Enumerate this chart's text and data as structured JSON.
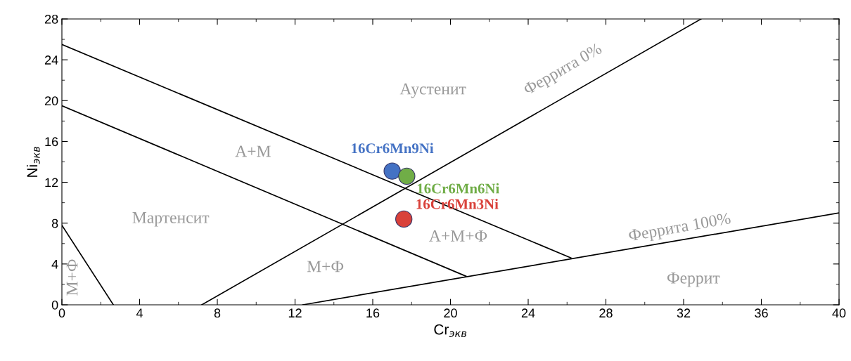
{
  "chart_data": {
    "type": "line",
    "xlabel": "Cr$_{экв}$",
    "ylabel": "Ni$_{экв}$",
    "xlim": [
      0,
      40
    ],
    "xticks": [
      0,
      4,
      8,
      12,
      16,
      20,
      24,
      28,
      32,
      36,
      40
    ],
    "ylim": [
      0,
      28
    ],
    "yticks": [
      0,
      4,
      8,
      12,
      16,
      20,
      24,
      28
    ],
    "grid": false,
    "legend": false,
    "series": [
      {
        "color": "#000000",
        "x": [
          0,
          26.2
        ],
        "values": [
          25.5,
          4.6
        ],
        "marker": "none",
        "line_style": "solid"
      },
      {
        "color": "#000000",
        "x": [
          0,
          20.8
        ],
        "values": [
          19.5,
          2.8
        ],
        "marker": "none",
        "line_style": "solid"
      },
      {
        "color": "#000000",
        "x": [
          7.2,
          32.9
        ],
        "values": [
          0,
          28
        ],
        "marker": "none",
        "line_style": "solid"
      },
      {
        "color": "#000000",
        "x": [
          12.4,
          40
        ],
        "values": [
          0,
          9.0
        ],
        "marker": "none",
        "line_style": "solid"
      },
      {
        "color": "#000000",
        "x": [
          0,
          2.65
        ],
        "values": [
          7.8,
          0
        ],
        "marker": "none",
        "line_style": "solid"
      },
      {
        "type": "scatter",
        "name": "16Cr6Mn9Ni",
        "color": "#4472c4",
        "x": [
          17.0
        ],
        "values": [
          13.1
        ],
        "marker": "circle"
      },
      {
        "type": "scatter",
        "name": "16Cr6Mn6Ni",
        "color": "#70ad47",
        "x": [
          17.75
        ],
        "values": [
          12.6
        ],
        "marker": "circle"
      },
      {
        "type": "scatter",
        "name": "16Cr6Mn3Ni",
        "color": "#d9413a",
        "x": [
          17.6
        ],
        "values": [
          8.4
        ],
        "marker": "circle"
      }
    ],
    "annotations": [
      "Аустенит",
      "А+М",
      "Мартенсит",
      "М+Ф",
      "М+Ф",
      "А+М+Ф",
      "Феррита 0%",
      "Феррита 100%",
      "Феррит"
    ]
  }
}
